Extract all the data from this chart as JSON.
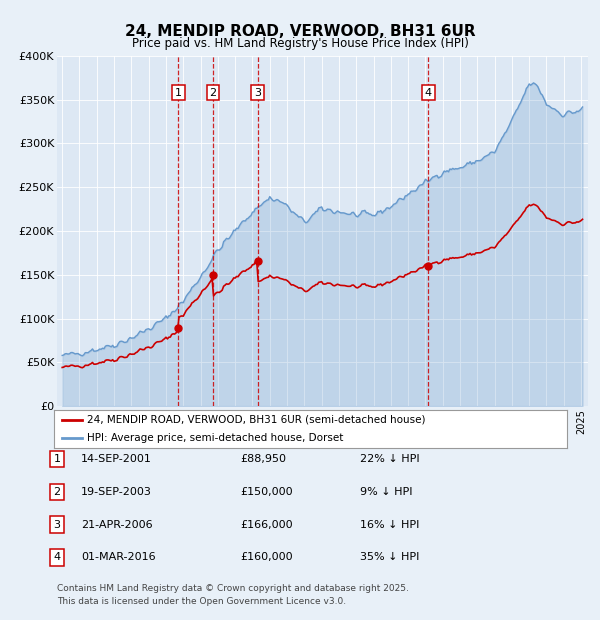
{
  "title": "24, MENDIP ROAD, VERWOOD, BH31 6UR",
  "subtitle": "Price paid vs. HM Land Registry's House Price Index (HPI)",
  "background_color": "#e8f0f8",
  "plot_bg_color": "#dde8f4",
  "ylim": [
    0,
    400000
  ],
  "yticks": [
    0,
    50000,
    100000,
    150000,
    200000,
    250000,
    300000,
    350000,
    400000
  ],
  "ytick_labels": [
    "£0",
    "£50K",
    "£100K",
    "£150K",
    "£200K",
    "£250K",
    "£300K",
    "£350K",
    "£400K"
  ],
  "transactions": [
    {
      "num": 1,
      "date": "14-SEP-2001",
      "price": 88950,
      "pct": "22%",
      "x_year": 2001.71
    },
    {
      "num": 2,
      "date": "19-SEP-2003",
      "price": 150000,
      "pct": "9%",
      "x_year": 2003.71
    },
    {
      "num": 3,
      "date": "21-APR-2006",
      "price": 166000,
      "pct": "16%",
      "x_year": 2006.3
    },
    {
      "num": 4,
      "date": "01-MAR-2016",
      "price": 160000,
      "pct": "35%",
      "x_year": 2016.16
    }
  ],
  "legend_red": "24, MENDIP ROAD, VERWOOD, BH31 6UR (semi-detached house)",
  "legend_blue": "HPI: Average price, semi-detached house, Dorset",
  "footer": "Contains HM Land Registry data © Crown copyright and database right 2025.\nThis data is licensed under the Open Government Licence v3.0.",
  "red_color": "#cc0000",
  "blue_color": "#6699cc",
  "blue_fill_alpha": 0.25,
  "xlim": [
    1994.7,
    2025.4
  ]
}
